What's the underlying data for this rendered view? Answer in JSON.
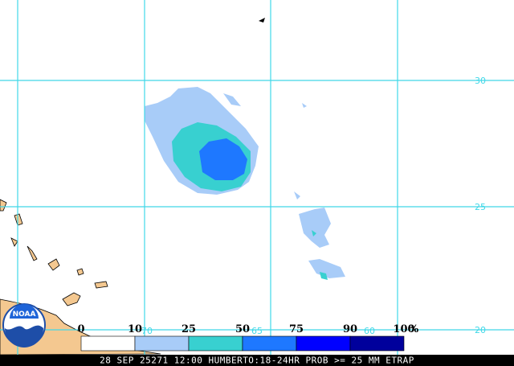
{
  "map": {
    "lat_labels": [
      30,
      25,
      20
    ],
    "lon_labels": [
      70,
      65,
      60
    ],
    "grid_color": "#40d8e8"
  },
  "legend": {
    "labels": [
      0,
      10,
      25,
      50,
      75,
      90,
      100
    ],
    "unit": "%",
    "colors": [
      "#ffffff",
      "#a8ccf8",
      "#38d0d0",
      "#1e78ff",
      "#0000ff",
      "#00009c"
    ]
  },
  "logo": {
    "text": "NOAA"
  },
  "footer": {
    "caption": "28 SEP 25271 12:00 HUMBERTO:18-24HR PROB >= 25 MM ETRAP"
  }
}
